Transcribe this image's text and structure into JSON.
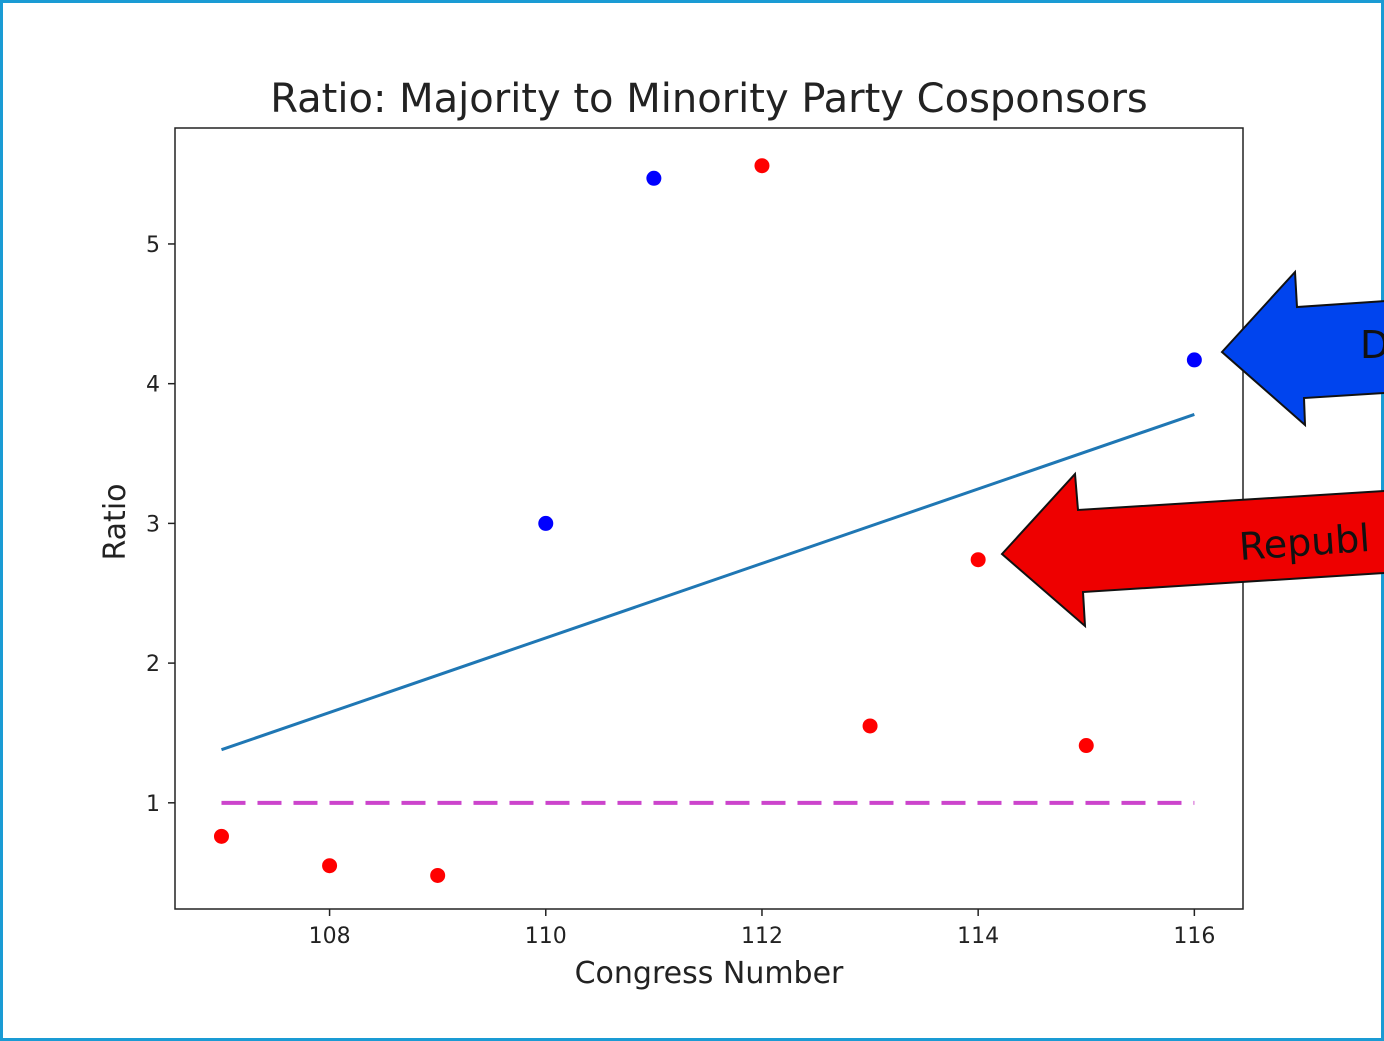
{
  "chart_data": {
    "type": "scatter",
    "title": "Ratio: Majority to Minority Party Cosponsors",
    "xlabel": "Congress Number",
    "ylabel": "Ratio",
    "xlim": [
      106.57,
      116.45
    ],
    "ylim": [
      0.24,
      5.83
    ],
    "xticks": [
      108,
      110,
      112,
      114,
      116
    ],
    "yticks": [
      1,
      2,
      3,
      4,
      5
    ],
    "grid": false,
    "points": [
      {
        "x": 107,
        "y": 0.76,
        "party": "red"
      },
      {
        "x": 108,
        "y": 0.55,
        "party": "red"
      },
      {
        "x": 109,
        "y": 0.48,
        "party": "red"
      },
      {
        "x": 110,
        "y": 3.0,
        "party": "blue"
      },
      {
        "x": 111,
        "y": 5.47,
        "party": "blue"
      },
      {
        "x": 112,
        "y": 5.56,
        "party": "red"
      },
      {
        "x": 113,
        "y": 1.55,
        "party": "red"
      },
      {
        "x": 114,
        "y": 2.74,
        "party": "red"
      },
      {
        "x": 115,
        "y": 1.41,
        "party": "red"
      },
      {
        "x": 116,
        "y": 4.17,
        "party": "blue"
      }
    ],
    "trend_line": {
      "x": [
        107,
        116
      ],
      "y": [
        1.38,
        3.78
      ],
      "color": "#1f77b4"
    },
    "reference_line": {
      "y": 1,
      "x": [
        107,
        116
      ],
      "style": "dashed",
      "color": "#cc44cc"
    },
    "annotations": [
      {
        "text": "D",
        "color": "#0044ee",
        "points_to": {
          "x": 116,
          "y": 4.17
        }
      },
      {
        "text": "Republ",
        "color": "#ee0000",
        "points_to": {
          "x": 114,
          "y": 2.74
        }
      }
    ],
    "colors": {
      "red": "#ff0000",
      "blue": "#0000ff",
      "frame": "#1a9bd4"
    }
  }
}
